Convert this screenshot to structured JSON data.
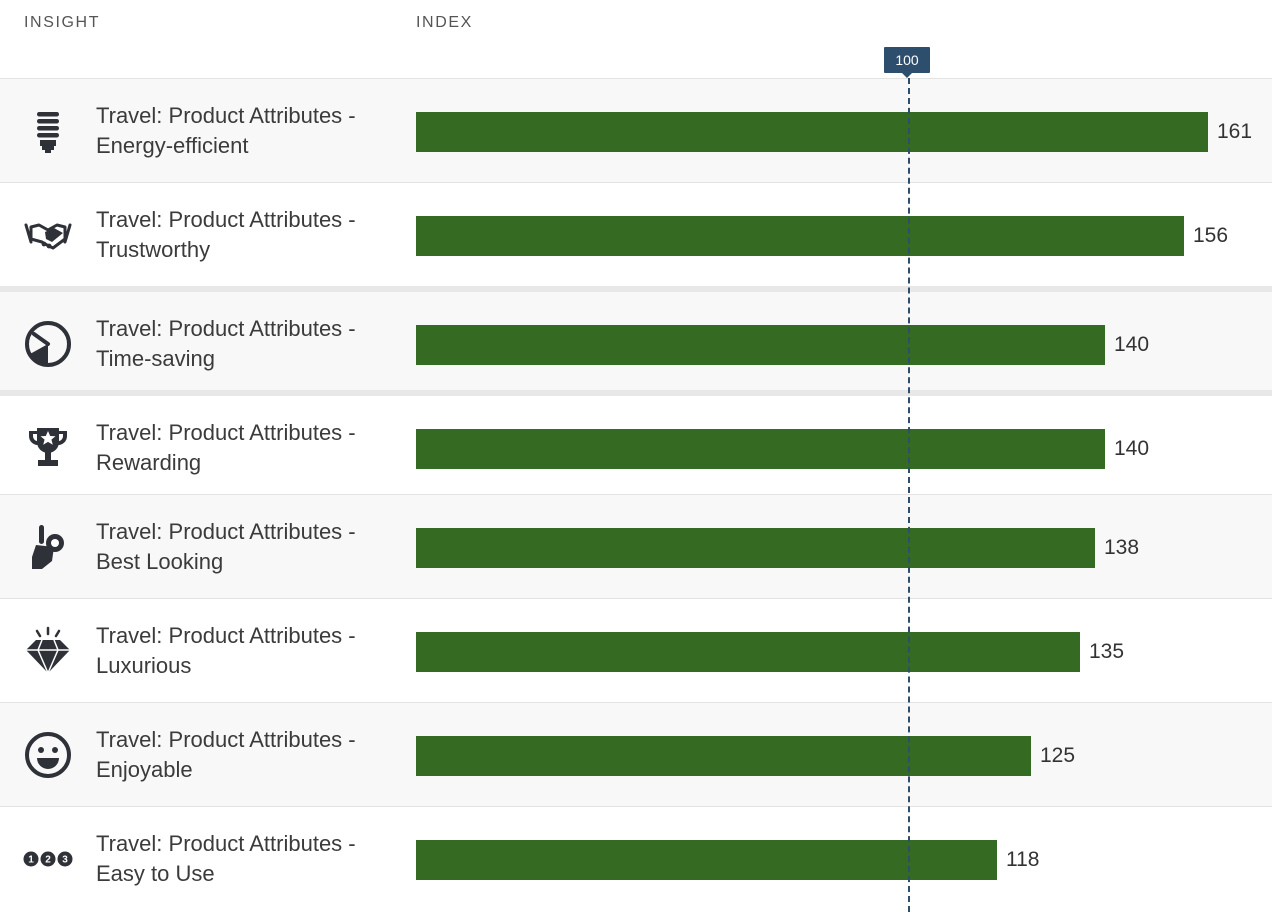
{
  "header": {
    "insight_label": "INSIGHT",
    "index_label": "INDEX"
  },
  "reference": {
    "value": 100,
    "label": "100",
    "color": "#2e4e6e"
  },
  "colors": {
    "bar": "#356a23"
  },
  "chart_data": {
    "type": "bar",
    "orientation": "horizontal",
    "xlim": [
      0,
      164
    ],
    "reference_line": 100,
    "rows": [
      {
        "line1": "Travel: Product Attributes -",
        "line2": "Energy-efficient",
        "value": 161,
        "value_label": "161",
        "icon": "lightbulb-icon"
      },
      {
        "line1": "Travel: Product Attributes -",
        "line2": "Trustworthy",
        "value": 156,
        "value_label": "156",
        "icon": "handshake-icon"
      },
      {
        "line1": "Travel: Product Attributes -",
        "line2": "Time-saving",
        "value": 140,
        "value_label": "140",
        "icon": "clock-icon"
      },
      {
        "line1": "Travel: Product Attributes -",
        "line2": "Rewarding",
        "value": 140,
        "value_label": "140",
        "icon": "trophy-icon"
      },
      {
        "line1": "Travel: Product Attributes -",
        "line2": "Best Looking",
        "value": 138,
        "value_label": "138",
        "icon": "ok-hand-icon"
      },
      {
        "line1": "Travel: Product Attributes -",
        "line2": "Luxurious",
        "value": 135,
        "value_label": "135",
        "icon": "diamond-icon"
      },
      {
        "line1": "Travel: Product Attributes -",
        "line2": "Enjoyable",
        "value": 125,
        "value_label": "125",
        "icon": "smiley-icon"
      },
      {
        "line1": "Travel: Product Attributes -",
        "line2": "Easy to Use",
        "value": 118,
        "value_label": "118",
        "icon": "steps-123-icon"
      }
    ]
  }
}
